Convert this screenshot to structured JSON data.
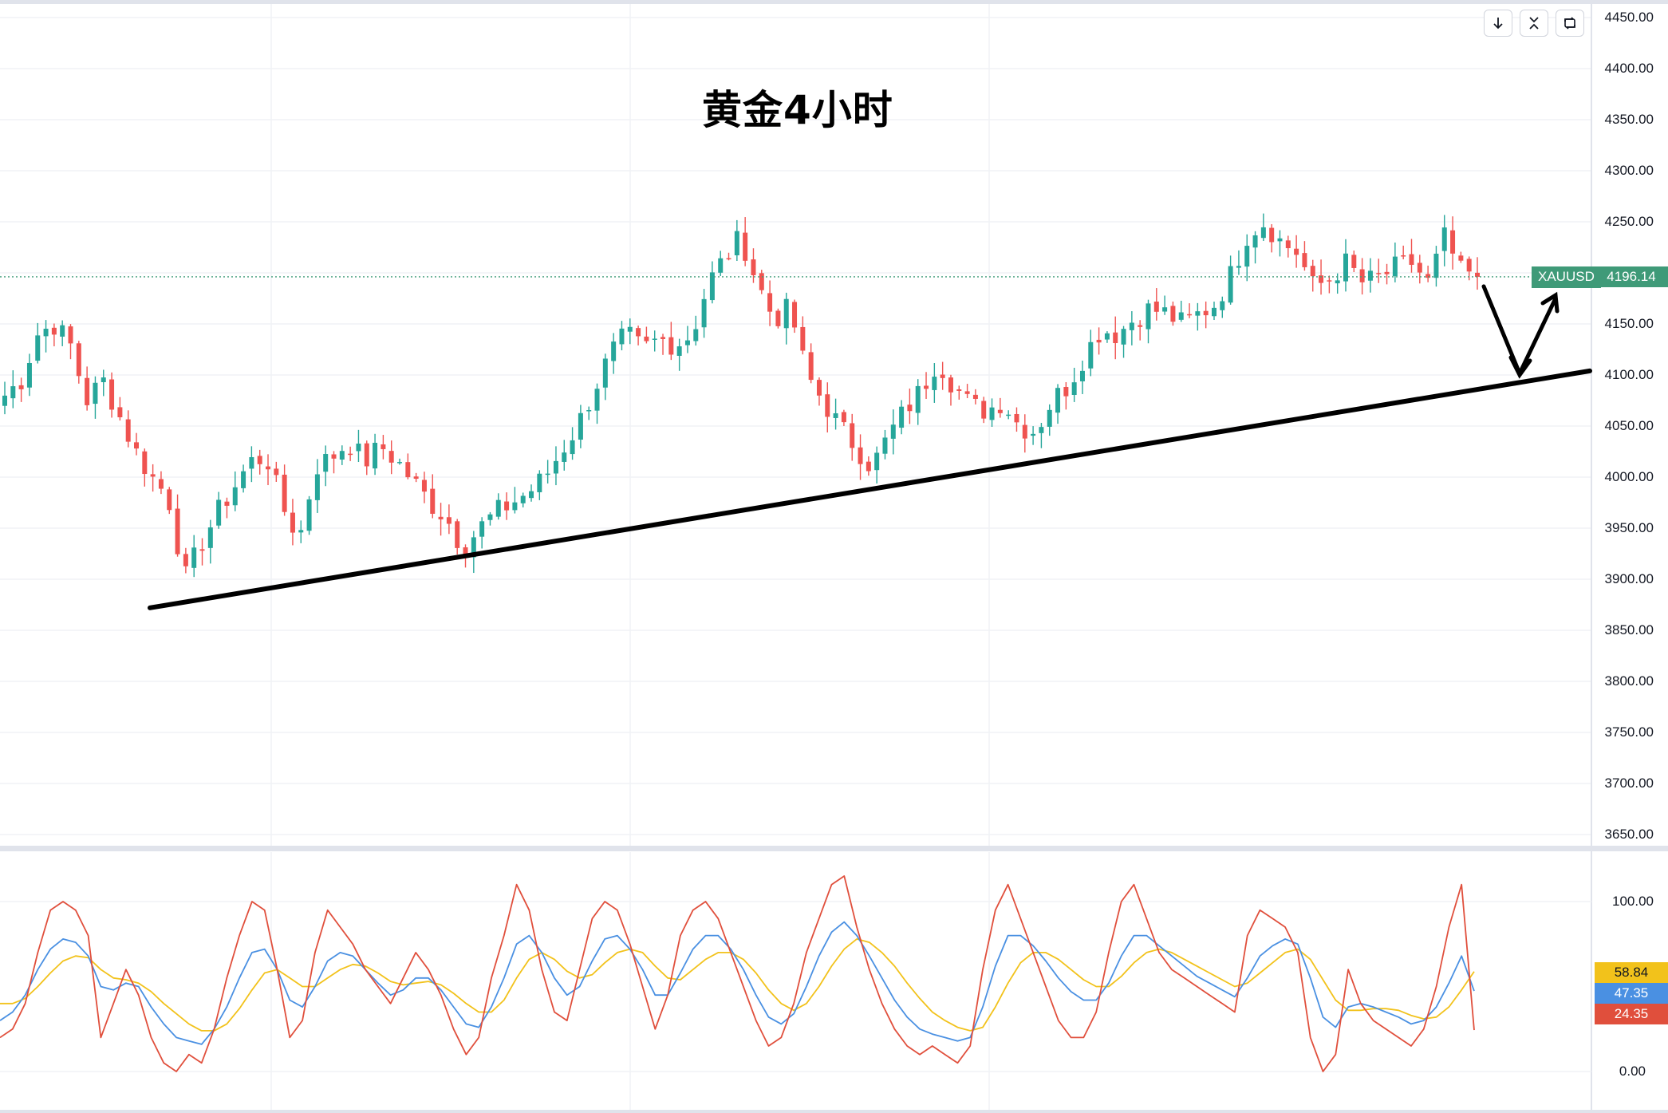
{
  "toolbar": {
    "buttons": [
      {
        "name": "arrow-down-icon"
      },
      {
        "name": "collapse-icon"
      },
      {
        "name": "refresh-icon"
      }
    ]
  },
  "chart_data": [
    {
      "type": "candlestick",
      "title": "黄金4小时",
      "symbol": "XAUUSD",
      "last_price": "4196.14",
      "ylim": [
        3650,
        4450
      ],
      "y_ticks": [
        "4450.00",
        "4400.00",
        "4350.00",
        "4300.00",
        "4250.00",
        "4200.00",
        "4150.00",
        "4100.00",
        "4050.00",
        "4000.00",
        "3950.00",
        "3900.00",
        "3850.00",
        "3800.00",
        "3750.00",
        "3700.00",
        "3650.00"
      ],
      "grid": true,
      "colors": {
        "up": "#26a69a",
        "down": "#ef5350",
        "trendline": "#000000"
      },
      "close_path": [
        4080,
        4095,
        4140,
        4150,
        4130,
        4075,
        4095,
        4060,
        4025,
        4000,
        3980,
        3900,
        3935,
        3965,
        3990,
        4015,
        4020,
        3970,
        3940,
        4010,
        4020,
        4035,
        4015,
        4030,
        4015,
        3995,
        3975,
        3960,
        3930,
        3950,
        3965,
        3975,
        3985,
        4000,
        4025,
        4050,
        4085,
        4120,
        4140,
        4125,
        4135,
        4130,
        4140,
        4190,
        4215,
        4235,
        4190,
        4155,
        4165,
        4100,
        4075,
        4050,
        4030,
        4010,
        4040,
        4065,
        4085,
        4115,
        4090,
        4070,
        4065,
        4075,
        4050,
        4045,
        4075,
        4090,
        4120,
        4145,
        4140,
        4155,
        4165,
        4160,
        4150,
        4160,
        4170,
        4200,
        4240,
        4250,
        4230,
        4220,
        4185,
        4195,
        4210,
        4190,
        4195,
        4205,
        4210,
        4190,
        4235,
        4200,
        4196.14
      ],
      "trendline": {
        "start": {
          "bar": 0,
          "price": 3872
        },
        "end": {
          "bar": 1,
          "price": 4104
        }
      },
      "projection": [
        "4196.14",
        "4100",
        "4175"
      ]
    },
    {
      "type": "line",
      "title": "",
      "ylim": [
        -15,
        120
      ],
      "y_ticks": [
        "100.00",
        "0.00"
      ],
      "series": [
        {
          "color": "#e04f3c",
          "last": "24.35",
          "values": [
            20,
            25,
            40,
            70,
            95,
            100,
            95,
            80,
            20,
            40,
            60,
            45,
            20,
            5,
            0,
            10,
            5,
            25,
            55,
            80,
            100,
            95,
            60,
            20,
            30,
            70,
            95,
            85,
            75,
            60,
            50,
            40,
            55,
            70,
            60,
            45,
            25,
            10,
            20,
            55,
            80,
            110,
            95,
            60,
            35,
            30,
            60,
            90,
            100,
            95,
            75,
            50,
            25,
            45,
            80,
            95,
            100,
            90,
            70,
            50,
            30,
            15,
            20,
            40,
            70,
            90,
            110,
            115,
            85,
            60,
            40,
            25,
            15,
            10,
            15,
            10,
            5,
            15,
            60,
            95,
            110,
            90,
            70,
            50,
            30,
            20,
            20,
            35,
            70,
            100,
            110,
            90,
            70,
            60,
            55,
            50,
            45,
            40,
            35,
            80,
            95,
            90,
            85,
            70,
            20,
            0,
            10,
            60,
            40,
            30,
            25,
            20,
            15,
            25,
            50,
            85,
            110,
            24.35
          ]
        },
        {
          "color": "#4a90e2",
          "last": "47.35",
          "values": [
            30,
            35,
            45,
            60,
            72,
            78,
            76,
            68,
            50,
            48,
            52,
            50,
            38,
            28,
            20,
            18,
            16,
            25,
            38,
            55,
            70,
            72,
            60,
            42,
            38,
            50,
            65,
            70,
            68,
            60,
            52,
            45,
            48,
            55,
            55,
            48,
            38,
            28,
            26,
            38,
            55,
            75,
            80,
            70,
            55,
            45,
            50,
            65,
            78,
            80,
            72,
            60,
            45,
            45,
            58,
            72,
            80,
            80,
            72,
            60,
            45,
            32,
            28,
            34,
            50,
            68,
            82,
            88,
            80,
            68,
            55,
            42,
            32,
            25,
            22,
            20,
            18,
            20,
            38,
            62,
            80,
            80,
            74,
            65,
            55,
            47,
            42,
            42,
            52,
            68,
            80,
            80,
            74,
            68,
            62,
            56,
            52,
            48,
            44,
            55,
            68,
            74,
            78,
            75,
            55,
            32,
            26,
            38,
            40,
            38,
            35,
            32,
            28,
            30,
            38,
            52,
            68,
            47.35
          ]
        },
        {
          "color": "#f2c21b",
          "last": "58.84",
          "values": [
            40,
            40,
            43,
            50,
            58,
            65,
            68,
            67,
            60,
            55,
            54,
            52,
            47,
            40,
            34,
            28,
            24,
            24,
            28,
            37,
            48,
            58,
            60,
            55,
            50,
            50,
            55,
            60,
            63,
            62,
            58,
            53,
            51,
            52,
            53,
            51,
            46,
            40,
            35,
            35,
            42,
            55,
            66,
            70,
            66,
            59,
            55,
            57,
            64,
            70,
            72,
            70,
            62,
            55,
            54,
            60,
            66,
            70,
            70,
            66,
            58,
            48,
            40,
            36,
            40,
            50,
            62,
            72,
            78,
            76,
            70,
            62,
            52,
            43,
            35,
            30,
            26,
            24,
            26,
            38,
            52,
            64,
            70,
            70,
            66,
            60,
            54,
            50,
            50,
            56,
            64,
            70,
            72,
            70,
            66,
            62,
            58,
            54,
            50,
            52,
            58,
            64,
            70,
            72,
            66,
            54,
            42,
            36,
            36,
            37,
            37,
            36,
            33,
            31,
            32,
            38,
            48,
            58.84
          ]
        }
      ]
    }
  ]
}
